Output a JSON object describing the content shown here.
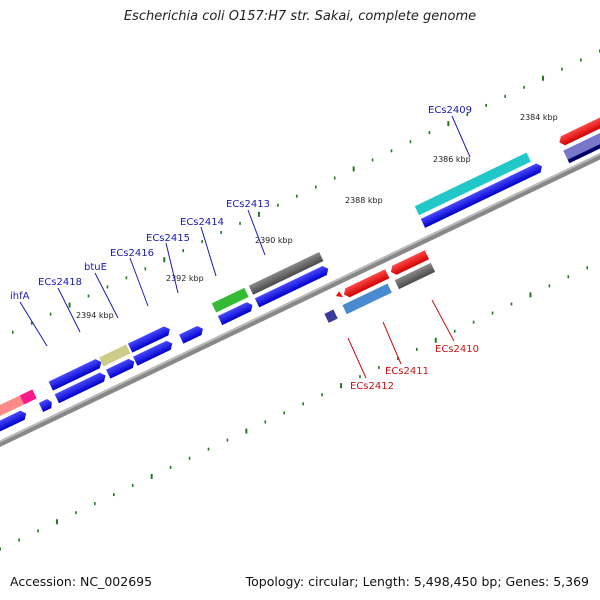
{
  "title": "Escherichia coli O157:H7 str. Sakai, complete genome",
  "footer": {
    "accession": "Accession: NC_002695",
    "summary": "Topology: circular; Length: 5,498,450 bp; Genes: 5,369"
  },
  "colors": {
    "backbone": "#8a8a8a",
    "forward_gene": "#1111dd",
    "reverse_gene": "#ee1111",
    "label_forward": "#1a1ab0",
    "label_reverse": "#cc1111",
    "tick": "#1f7a1f"
  },
  "kbp_labels": [
    "2384 kbp",
    "2386 kbp",
    "2388 kbp",
    "2390 kbp",
    "2392 kbp",
    "2394 kbp"
  ],
  "gene_labels_forward": [
    "ECs2409",
    "ECs2413",
    "ECs2414",
    "ECs2415",
    "ECs2416",
    "btuE",
    "ECs2418",
    "ihfA"
  ],
  "gene_labels_reverse": [
    "ECs2410",
    "ECs2411",
    "ECs2412"
  ]
}
